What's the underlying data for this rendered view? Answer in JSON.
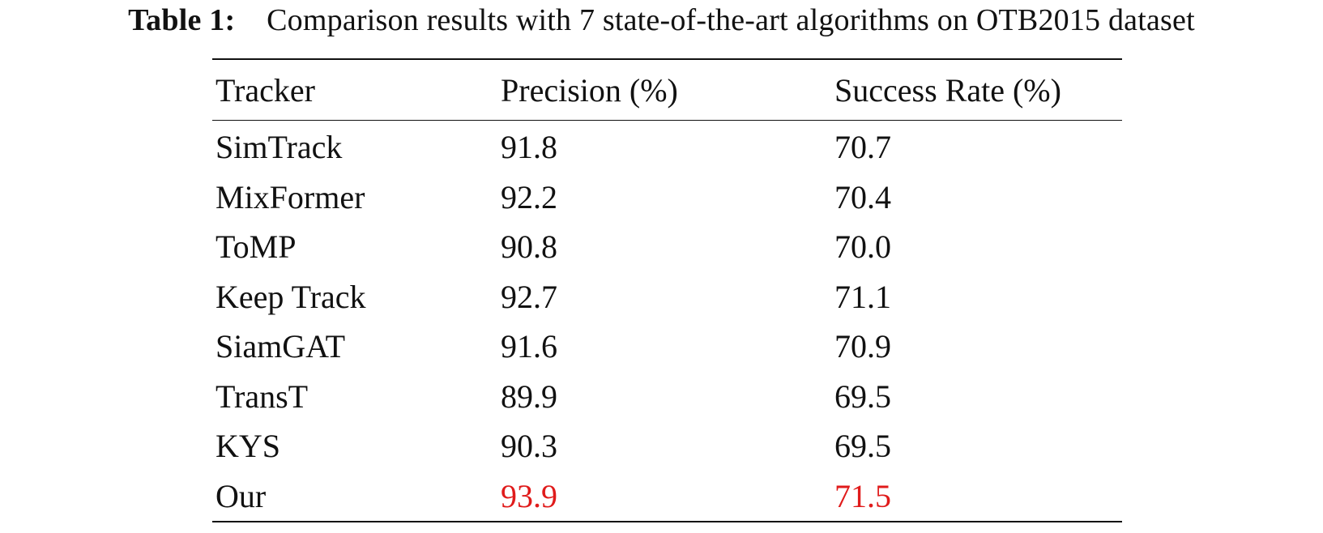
{
  "caption": {
    "label": "Table 1:",
    "text": "Comparison results with 7 state-of-the-art algorithms on OTB2015 dataset"
  },
  "table": {
    "headers": [
      "Tracker",
      "Precision (%)",
      "Success Rate (%)"
    ],
    "rows": [
      {
        "tracker": "SimTrack",
        "precision": "91.8",
        "success": "70.7"
      },
      {
        "tracker": "MixFormer",
        "precision": "92.2",
        "success": "70.4"
      },
      {
        "tracker": "ToMP",
        "precision": "90.8",
        "success": "70.0"
      },
      {
        "tracker": "Keep Track",
        "precision": "92.7",
        "success": "71.1"
      },
      {
        "tracker": "SiamGAT",
        "precision": "91.6",
        "success": "70.9"
      },
      {
        "tracker": "TransT",
        "precision": "89.9",
        "success": "69.5"
      },
      {
        "tracker": "KYS",
        "precision": "90.3",
        "success": "69.5"
      },
      {
        "tracker": "Our",
        "precision": "93.9",
        "success": "71.5"
      }
    ],
    "highlight_color": "#e01b1b"
  }
}
